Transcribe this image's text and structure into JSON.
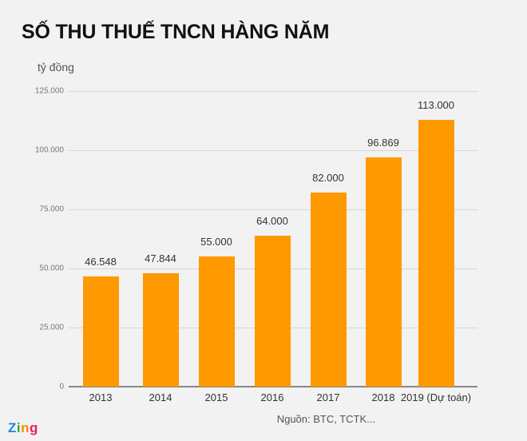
{
  "title": "SỐ THU THUẾ TNCN HÀNG NĂM",
  "unit": "tỷ đồng",
  "source": "Nguồn: BTC, TCTK...",
  "logo": {
    "letters": [
      "Z",
      "i",
      "n",
      "g"
    ],
    "colors": [
      "#1e88e5",
      "#43a047",
      "#fb8c00",
      "#e91e63"
    ]
  },
  "bar_color": "#ff9900",
  "chart_data": {
    "type": "bar",
    "title": "SỐ THU THUẾ TNCN HÀNG NĂM",
    "xlabel": "",
    "ylabel": "tỷ đồng",
    "ylim": [
      0,
      125000
    ],
    "yticks": [
      0,
      25000,
      50000,
      75000,
      100000,
      125000
    ],
    "ytick_labels": [
      "0",
      "25.000",
      "50.000",
      "75.000",
      "100.000",
      "125.000"
    ],
    "grid": true,
    "categories": [
      "2013",
      "2014",
      "2015",
      "2016",
      "2017",
      "2018",
      "2019 (Dự toán)"
    ],
    "values": [
      46548,
      47844,
      55000,
      64000,
      82000,
      96869,
      113000
    ],
    "value_labels": [
      "46.548",
      "47.844",
      "55.000",
      "64.000",
      "82.000",
      "96.869",
      "113.000"
    ]
  }
}
